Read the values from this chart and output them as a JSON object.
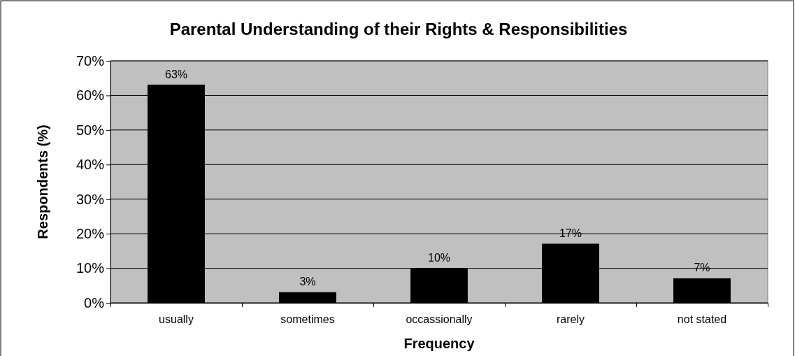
{
  "chart_data": {
    "type": "bar",
    "title": "Parental Understanding of their Rights & Responsibilities",
    "xlabel": "Frequency",
    "ylabel": "Respondents (%)",
    "categories": [
      "usually",
      "sometimes",
      "occassionally",
      "rarely",
      "not stated"
    ],
    "values": [
      63,
      3,
      10,
      17,
      7
    ],
    "color": "#000000",
    "data_labels": true,
    "value_labels": [
      "63%",
      "3%",
      "10%",
      "17%",
      "7%"
    ],
    "ylim": [
      0,
      70
    ],
    "yticks": [
      {
        "value": 0,
        "label": "0%"
      },
      {
        "value": 10,
        "label": "10%"
      },
      {
        "value": 20,
        "label": "20%"
      },
      {
        "value": 30,
        "label": "30%"
      },
      {
        "value": 40,
        "label": "40%"
      },
      {
        "value": 50,
        "label": "50%"
      },
      {
        "value": 60,
        "label": "60%"
      },
      {
        "value": 70,
        "label": "70%"
      }
    ],
    "grid": "y"
  }
}
